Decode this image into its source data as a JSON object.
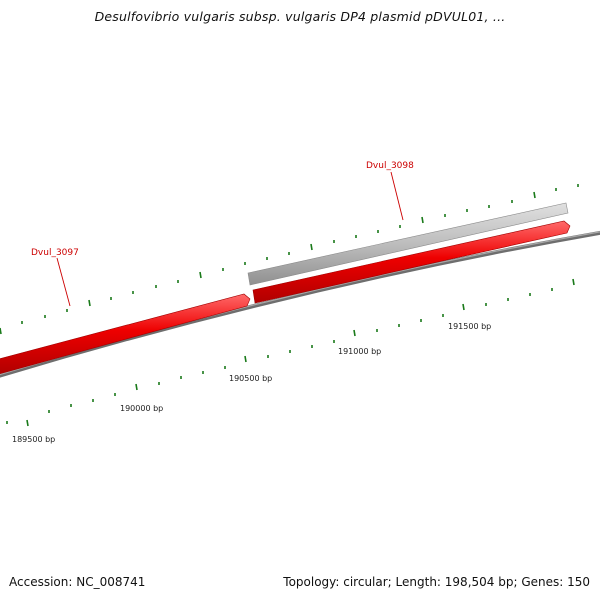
{
  "title": "Desulfovibrio vulgaris subsp. vulgaris DP4 plasmid pDVUL01, ...",
  "footer": {
    "accession": "Accession: NC_008741",
    "summary": "Topology: circular; Length: 198,504 bp; Genes: 150"
  },
  "colors": {
    "gene_red": "#ee0000",
    "gene_gray": "#b8b8b8",
    "tick_green": "#1a7a1a",
    "backbone": "#7a7a7a",
    "label_red": "#cc0000"
  },
  "position_labels": [
    "189500 bp",
    "190000 bp",
    "190500 bp",
    "191000 bp",
    "191500 bp"
  ],
  "genes": [
    {
      "name": "Dvul_3097"
    },
    {
      "name": "Dvul_3098"
    }
  ]
}
